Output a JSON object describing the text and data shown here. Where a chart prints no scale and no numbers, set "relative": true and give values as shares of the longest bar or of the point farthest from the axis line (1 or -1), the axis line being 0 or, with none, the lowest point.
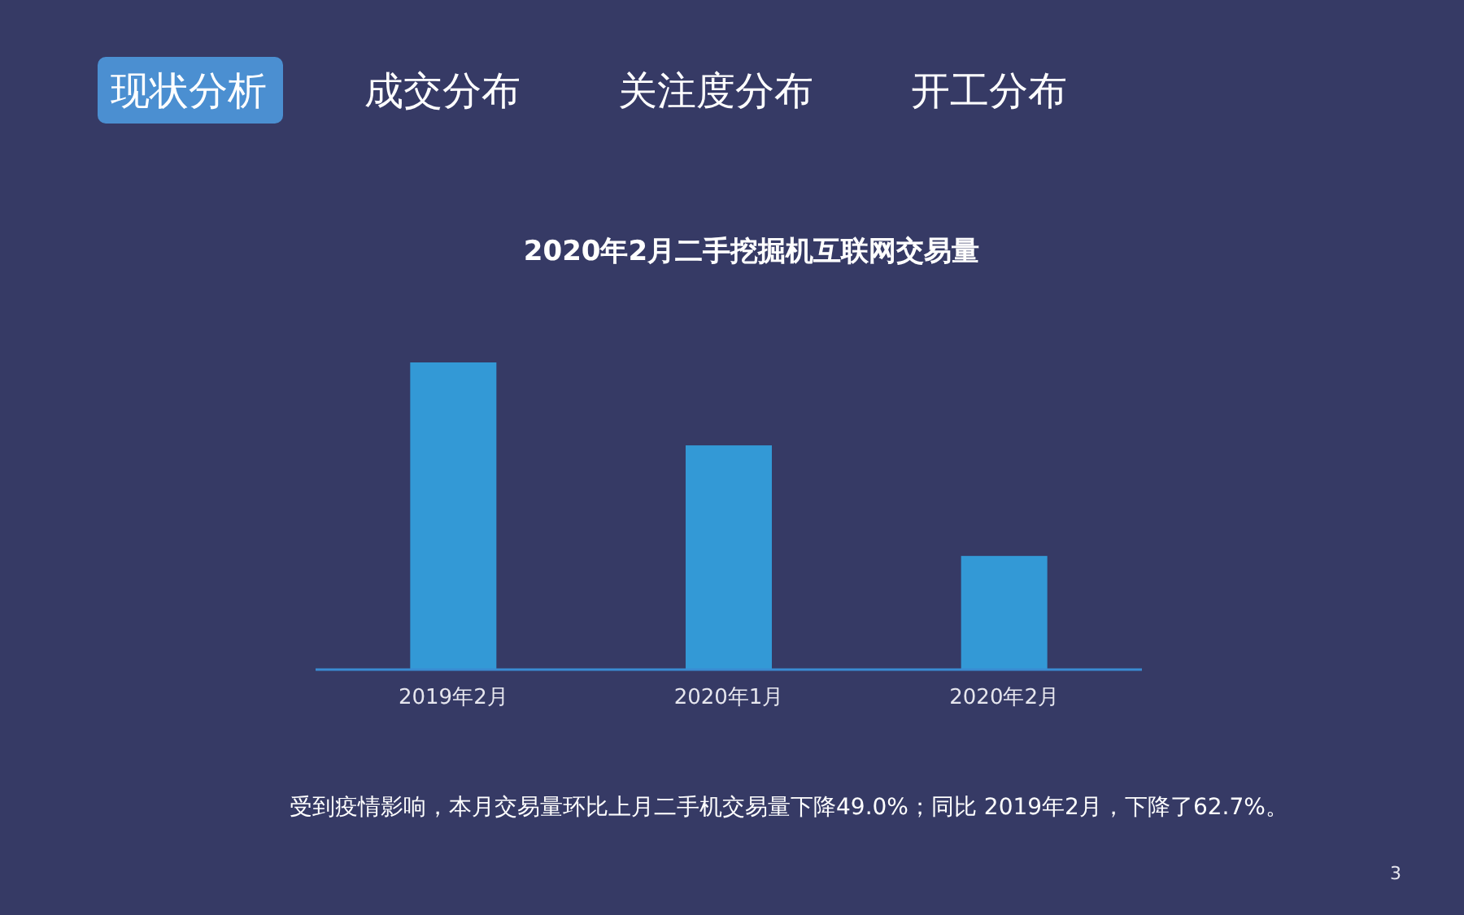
{
  "chart_data": {
    "type": "bar",
    "title": "2020年2月二手挖掘机互联网交易量",
    "categories": [
      "2019年2月",
      "2020年1月",
      "2020年2月"
    ],
    "values": [
      1,
      0.73,
      0.37
    ],
    "color": "#3399d6",
    "relative": true,
    "annotations": [
      "现状分析",
      "成交分布",
      "关注度分布",
      "开工分布",
      "受到疫情影响，本月交易量环比上月二手机交易量下降49.0%；同比 2019年2月，下降了62.7%。",
      "3"
    ]
  }
}
